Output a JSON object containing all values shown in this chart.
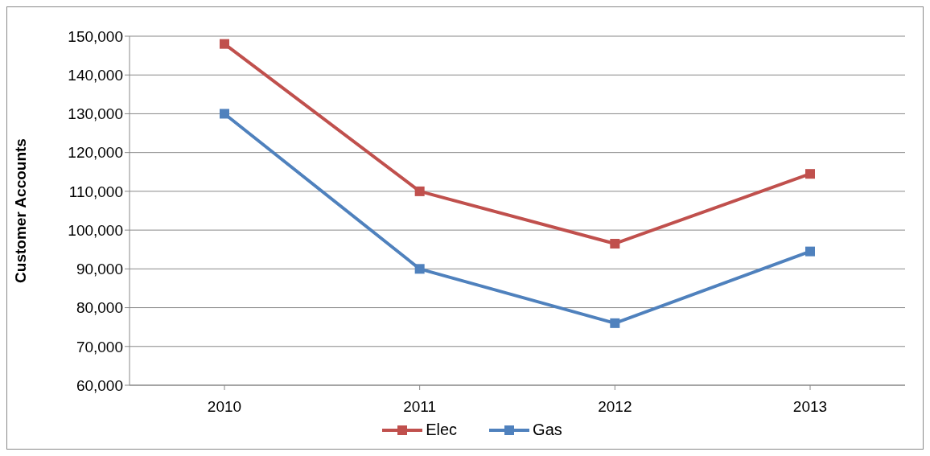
{
  "chart_data": {
    "type": "line",
    "ylabel": "Customer Accounts",
    "categories": [
      "2010",
      "2011",
      "2012",
      "2013"
    ],
    "series": [
      {
        "name": "Elec",
        "color": "#c0504d",
        "values": [
          148000,
          110000,
          96500,
          114500
        ]
      },
      {
        "name": "Gas",
        "color": "#4f81bd",
        "values": [
          130000,
          90000,
          76000,
          94500
        ]
      }
    ],
    "ylim": [
      60000,
      150000
    ],
    "yticks": [
      {
        "value": 60000,
        "label": "60,000"
      },
      {
        "value": 70000,
        "label": "70,000"
      },
      {
        "value": 80000,
        "label": "80,000"
      },
      {
        "value": 90000,
        "label": "90,000"
      },
      {
        "value": 100000,
        "label": "100,000"
      },
      {
        "value": 110000,
        "label": "110,000"
      },
      {
        "value": 120000,
        "label": "120,000"
      },
      {
        "value": 130000,
        "label": "130,000"
      },
      {
        "value": 140000,
        "label": "140,000"
      },
      {
        "value": 150000,
        "label": "150,000"
      }
    ],
    "grid": "y",
    "legend": "bottom",
    "marker": "square",
    "line_style": "solid"
  }
}
